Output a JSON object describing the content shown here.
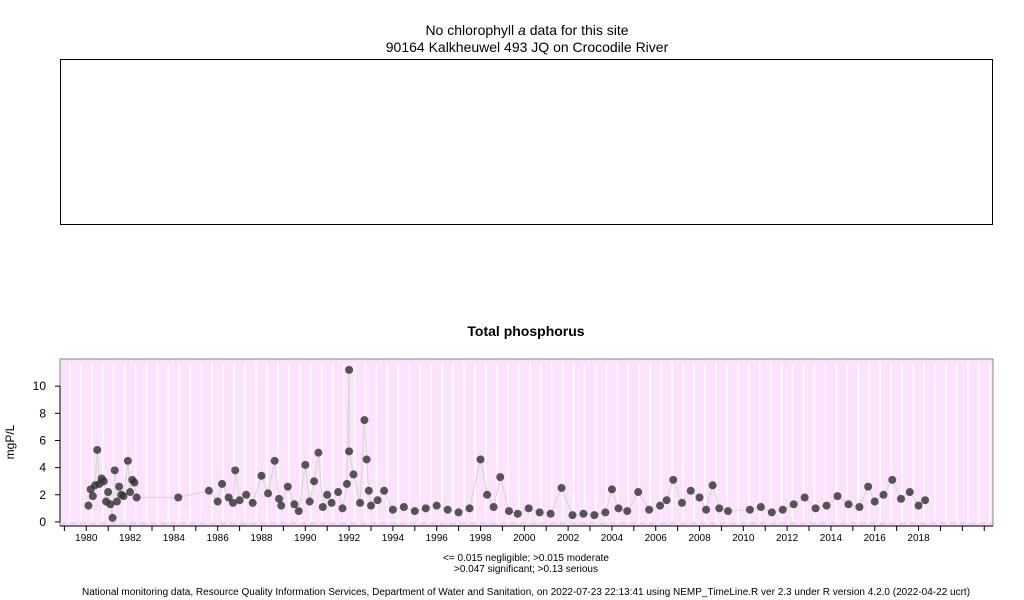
{
  "chla": {
    "title_pre": "No chlorophyll ",
    "title_italic": "a",
    "title_post": " data for this site",
    "site": "90164 Kalkheuwel 493 JQ on Crocodile River"
  },
  "colors": {
    "plot_background": "#fde2fd",
    "marker": "#333333",
    "negligible_band": "#a9b8c8",
    "vertical_rule": "#ffffff",
    "connector": "#d8d8d8"
  },
  "chart_data": {
    "type": "scatter",
    "title": "Total phosphorus",
    "xlabel": "",
    "ylabel": "mgP/L",
    "xlim": [
      1978.8,
      2021.4
    ],
    "ylim": [
      -0.3,
      12.0
    ],
    "yticks": [
      0,
      2,
      4,
      6,
      8,
      10
    ],
    "xticks": [
      "1980",
      "1982",
      "1984",
      "1986",
      "1988",
      "1990",
      "1992",
      "1994",
      "1996",
      "1998",
      "2000",
      "2002",
      "2004",
      "2006",
      "2008",
      "2010",
      "2012",
      "2014",
      "2016",
      "2018"
    ],
    "grid": false,
    "thresholds": {
      "negligible": 0.015,
      "moderate": 0.015,
      "significant": 0.047,
      "serious": 0.13
    },
    "series": [
      {
        "x": [
          1980.1,
          1980.3,
          1980.5,
          1980.6,
          1980.7,
          1980.9,
          1981.0,
          1981.2,
          1981.3,
          1981.5,
          1981.7,
          1981.9,
          1982.0,
          1982.2,
          1982.3,
          1980.2,
          1980.8,
          1981.1,
          1981.6,
          1982.1,
          1985.6,
          1986.0,
          1986.2,
          1986.5,
          1986.8,
          1987.0,
          1987.3,
          1987.6,
          1988.0,
          1988.3,
          1988.6,
          1988.9,
          1989.2,
          1989.5,
          1989.7,
          1990.0,
          1990.2,
          1990.4,
          1990.6,
          1990.8,
          1991.0,
          1991.2,
          1991.5,
          1991.7,
          1992.0,
          1992.0,
          1992.2,
          1992.5,
          1992.7,
          1992.8,
          1993.0,
          1993.3,
          1993.6,
          1994.0,
          1994.5,
          1995.0,
          1995.5,
          1996.0,
          1996.5,
          1997.0,
          1997.5,
          1998.0,
          1998.3,
          1998.6,
          1998.9,
          1999.3,
          1999.7,
          2000.2,
          2000.7,
          2001.2,
          2001.7,
          2002.2,
          2002.7,
          2003.2,
          2003.7,
          2004.0,
          2004.3,
          2004.7,
          2005.2,
          2005.7,
          2006.2,
          2006.5,
          2006.8,
          2007.2,
          2007.6,
          2008.0,
          2008.3,
          2008.6,
          2008.9,
          2009.3,
          2010.3,
          2010.8,
          2011.3,
          2011.8,
          2012.3,
          2012.8,
          2013.3,
          2013.8,
          2014.3,
          2014.8,
          2015.3,
          2015.7,
          2016.0,
          2016.4,
          2016.8,
          2017.2,
          2017.6,
          2018.0,
          2018.3,
          1980.4,
          1981.4,
          1984.2,
          1986.7,
          1988.8,
          1991.9,
          1992.9
        ],
        "y": [
          1.2,
          1.9,
          5.3,
          2.8,
          3.2,
          1.5,
          2.2,
          0.3,
          3.8,
          2.6,
          1.9,
          4.5,
          2.2,
          2.9,
          1.8,
          2.4,
          3.0,
          1.3,
          2.0,
          3.1,
          2.3,
          1.5,
          2.8,
          1.8,
          3.8,
          1.6,
          2.0,
          1.4,
          3.4,
          2.1,
          4.5,
          1.2,
          2.6,
          1.3,
          0.8,
          4.2,
          1.5,
          3.0,
          5.1,
          1.1,
          2.0,
          1.4,
          2.2,
          1.0,
          11.2,
          5.2,
          3.5,
          1.4,
          7.5,
          4.6,
          1.2,
          1.6,
          2.3,
          0.9,
          1.1,
          0.8,
          1.0,
          1.2,
          0.9,
          0.7,
          1.0,
          4.6,
          2.0,
          1.1,
          3.3,
          0.8,
          0.6,
          1.0,
          0.7,
          0.6,
          2.5,
          0.5,
          0.6,
          0.5,
          0.7,
          2.4,
          1.0,
          0.8,
          2.2,
          0.9,
          1.2,
          1.6,
          3.1,
          1.4,
          2.3,
          1.8,
          0.9,
          2.7,
          1.0,
          0.8,
          0.9,
          1.1,
          0.7,
          0.9,
          1.3,
          1.8,
          1.0,
          1.2,
          1.9,
          1.3,
          1.1,
          2.6,
          1.5,
          2.0,
          3.1,
          1.7,
          2.2,
          1.2,
          1.6,
          2.7,
          1.5,
          1.8,
          1.4,
          1.7,
          2.8,
          2.3
        ]
      }
    ]
  },
  "captions": {
    "line1": "<= 0.015 negligible; >0.015 moderate",
    "line2": ">0.047 significant; >0.13 serious"
  },
  "footer": "National monitoring data, Resource Quality Information Services, Department of Water and Sanitation, on 2022-07-23 22:13:41 using NEMP_TimeLine.R ver 2.3 under R version 4.2.0 (2022-04-22 ucrt)"
}
